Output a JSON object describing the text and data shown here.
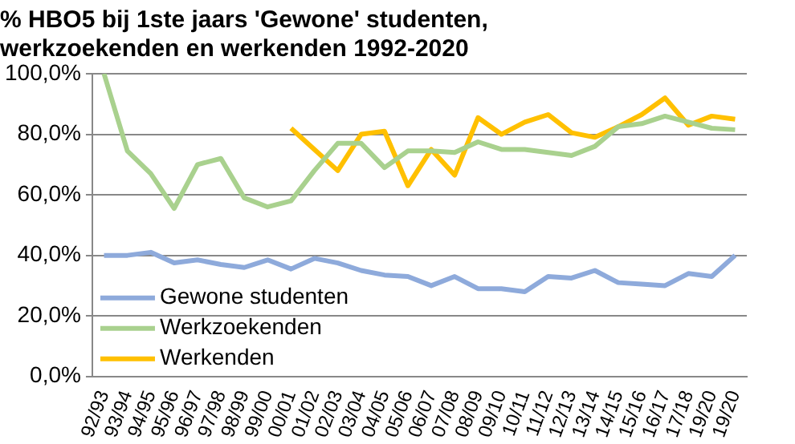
{
  "chart_data": {
    "type": "line",
    "title": "% HBO5 bij 1ste jaars 'Gewone' studenten, werkzoekenden en werkenden 1992-2020",
    "categories": [
      "92/93",
      "93/94",
      "94/95",
      "95/96",
      "96/97",
      "97/98",
      "98/99",
      "99/00",
      "00/01",
      "01/02",
      "02/03",
      "03/04",
      "04/05",
      "05/06",
      "06/07",
      "07/08",
      "08/09",
      "09/10",
      "10/11",
      "11/12",
      "12/13",
      "13/14",
      "14/15",
      "15/16",
      "16/17",
      "17/18",
      "19/20",
      "19/20"
    ],
    "series": [
      {
        "name": "Gewone studenten",
        "color": "#8eaadb",
        "values": [
          40,
          40,
          41,
          37.5,
          38.5,
          37,
          36,
          38.5,
          35.5,
          39,
          37.5,
          35,
          33.5,
          33,
          30,
          33,
          29,
          29,
          28,
          33,
          32.5,
          35,
          31,
          30.5,
          30,
          34,
          33,
          40
        ]
      },
      {
        "name": "Werkzoekenden",
        "color": "#a9d18e",
        "values": [
          100,
          74.5,
          67,
          55.5,
          70,
          72,
          59,
          56,
          58,
          68,
          77,
          77,
          69,
          74.5,
          74.5,
          74,
          77.5,
          75,
          75,
          74,
          73,
          76,
          82.5,
          83.5,
          86,
          84,
          82,
          81.5
        ]
      },
      {
        "name": "Werkenden",
        "color": "#ffc000",
        "values": [
          null,
          null,
          null,
          null,
          null,
          null,
          null,
          null,
          82,
          75,
          68,
          80,
          81,
          63,
          75,
          66.5,
          85.5,
          80,
          84,
          86.5,
          80.5,
          79,
          82.5,
          86.5,
          92,
          83,
          86,
          85
        ]
      }
    ],
    "ylim": [
      0,
      100
    ],
    "yticks": [
      {
        "value": 0,
        "label": "0,0%"
      },
      {
        "value": 20,
        "label": "20,0%"
      },
      {
        "value": 40,
        "label": "40,0%"
      },
      {
        "value": 60,
        "label": "60,0%"
      },
      {
        "value": 80,
        "label": "80,0%"
      },
      {
        "value": 100,
        "label": "100,0%"
      }
    ],
    "grid": "y",
    "legend": "bottom left",
    "marker": "none",
    "line_style": "solid"
  }
}
